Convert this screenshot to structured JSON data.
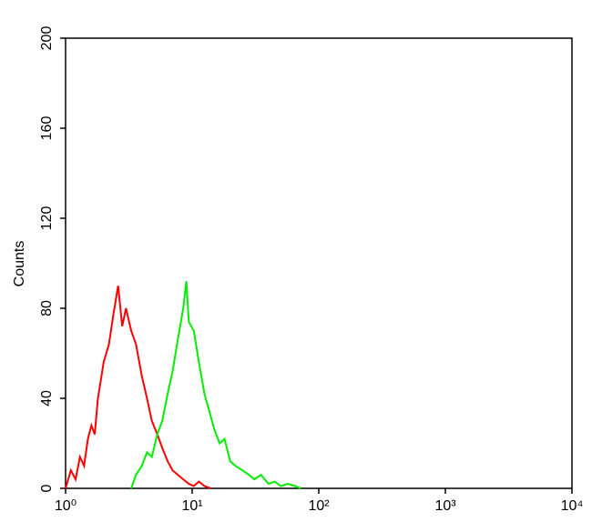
{
  "chart_data": {
    "type": "line",
    "y_label": "Counts",
    "x_scale": "log",
    "xlim": [
      1,
      10000
    ],
    "xticks": [
      {
        "value": 1,
        "label": "10⁰"
      },
      {
        "value": 10,
        "label": "10¹"
      },
      {
        "value": 100,
        "label": "10²"
      },
      {
        "value": 1000,
        "label": "10³"
      },
      {
        "value": 10000,
        "label": "10⁴"
      }
    ],
    "ylim": [
      0,
      200
    ],
    "yticks": [
      0,
      40,
      80,
      120,
      160,
      200
    ],
    "series": [
      {
        "color": "#ff0000",
        "x": [
          1,
          1.1,
          1.2,
          1.3,
          1.4,
          1.5,
          1.6,
          1.7,
          1.8,
          1.9,
          2.0,
          2.2,
          2.4,
          2.6,
          2.8,
          3.0,
          3.3,
          3.6,
          4.0,
          4.4,
          4.8,
          5.3,
          5.8,
          6.4,
          7.0,
          7.7,
          8.5,
          9.4,
          10.3,
          11.3,
          12.5,
          14
        ],
        "values": [
          0,
          8,
          4,
          14,
          10,
          22,
          28,
          24,
          40,
          48,
          56,
          64,
          78,
          90,
          72,
          80,
          70,
          64,
          50,
          40,
          30,
          24,
          18,
          12,
          8,
          6,
          4,
          2,
          1,
          3,
          1,
          0
        ]
      },
      {
        "color": "#00ee00",
        "x": [
          3.3,
          3.6,
          4.0,
          4.4,
          4.8,
          5.3,
          5.8,
          6.4,
          7.0,
          7.7,
          8.5,
          9.0,
          9.4,
          10.3,
          11.3,
          12.5,
          13.7,
          15,
          16.5,
          18,
          20,
          22,
          25,
          28,
          31,
          35,
          40,
          45,
          50,
          57,
          65,
          72
        ],
        "values": [
          0,
          6,
          10,
          16,
          14,
          24,
          30,
          42,
          52,
          66,
          80,
          92,
          74,
          70,
          56,
          42,
          34,
          26,
          20,
          22,
          12,
          10,
          8,
          6,
          4,
          6,
          2,
          3,
          1,
          2,
          1,
          0
        ]
      }
    ]
  }
}
